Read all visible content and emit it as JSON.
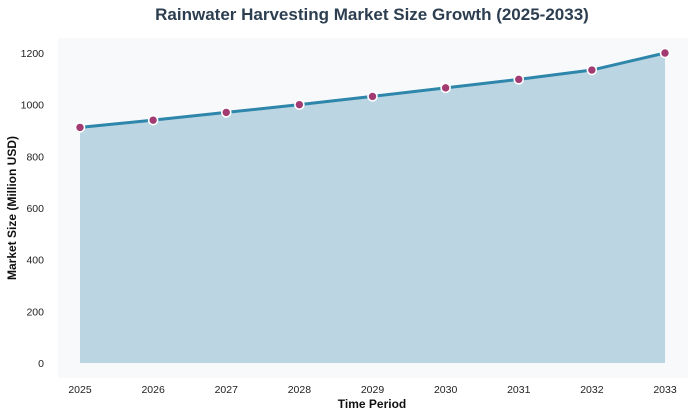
{
  "chart_data": {
    "type": "area",
    "title": "Rainwater Harvesting Market Size Growth (2025-2033)",
    "xlabel": "Time Period",
    "ylabel": "Market Size (Million USD)",
    "x": [
      "2025",
      "2026",
      "2027",
      "2028",
      "2029",
      "2030",
      "2031",
      "2032",
      "2033"
    ],
    "series": [
      {
        "values": [
          912,
          940,
          970,
          1000,
          1032,
          1065,
          1098,
          1134,
          1200
        ]
      }
    ],
    "y_ticks": [
      "0",
      "200",
      "400",
      "600",
      "800",
      "1000",
      "1200"
    ],
    "ylim": [
      0,
      1260
    ],
    "grid": false,
    "legend": "none",
    "colors": {
      "line": "#2e86ab",
      "fill": "#bcd5e2",
      "marker": "#a23b72",
      "marker_edge": "#ffffff",
      "plot_bg": "#f7f9fb"
    }
  }
}
